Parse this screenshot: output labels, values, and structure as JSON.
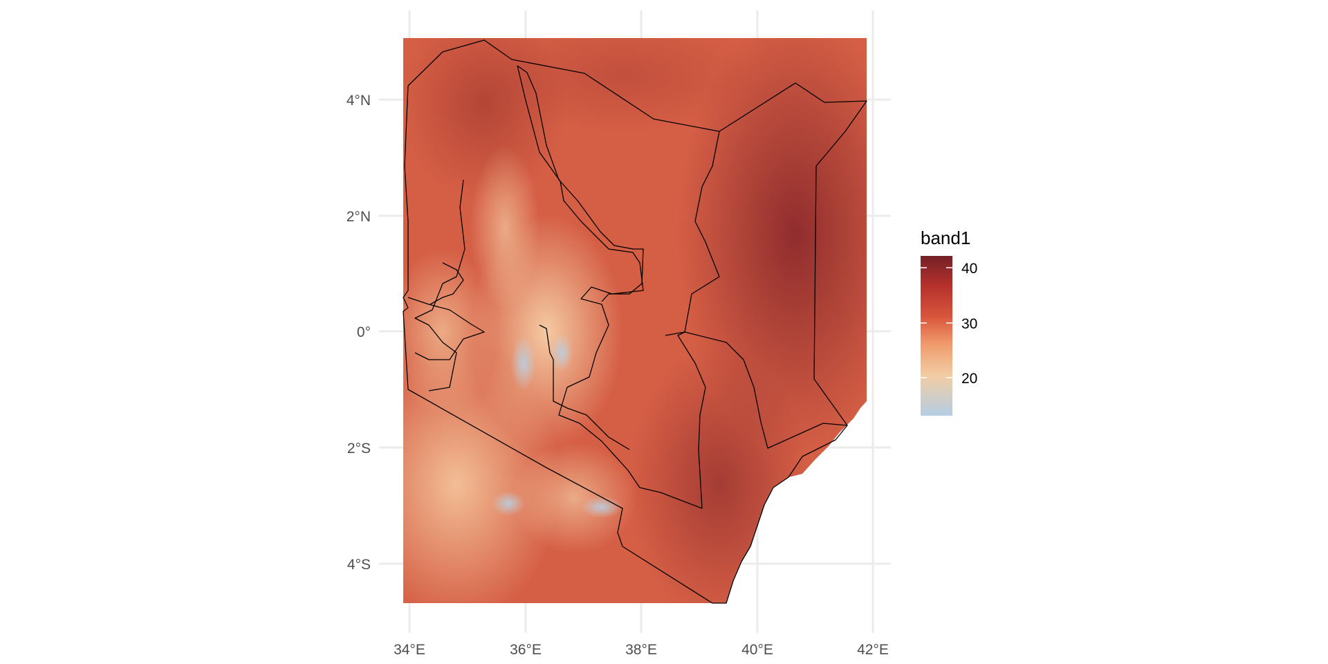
{
  "map": {
    "x_ticks": [
      "34°E",
      "36°E",
      "38°E",
      "40°E",
      "42°E"
    ],
    "y_ticks": [
      "4°N",
      "2°N",
      "0°",
      "2°S",
      "4°S"
    ],
    "lon_range": [
      33.9,
      41.9
    ],
    "lat_range": [
      -4.7,
      5.05
    ]
  },
  "legend": {
    "title": "band1",
    "labels": [
      "40",
      "30",
      "20"
    ],
    "range": [
      13,
      42.5
    ],
    "colors": [
      "#b4cde4",
      "#f2cda4",
      "#f09a6c",
      "#d8553b",
      "#b3302c",
      "#742027"
    ]
  },
  "colors": {
    "grid": "#ebebeb",
    "border": "#000000",
    "raster_base": "#d55f45"
  }
}
